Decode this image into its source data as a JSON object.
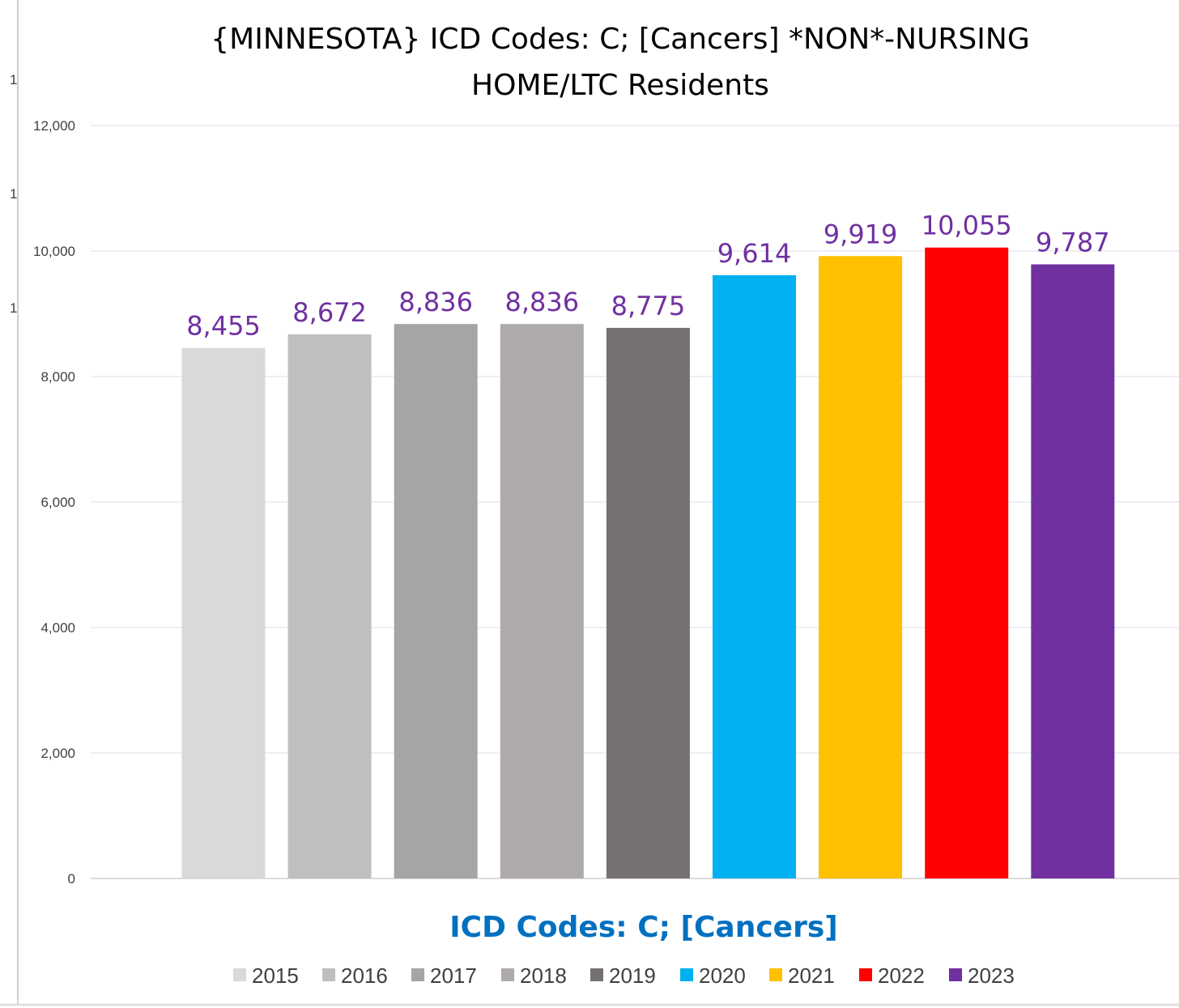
{
  "chart_data": {
    "type": "bar",
    "title": "{MINNESOTA}  ICD Codes: C;  [Cancers] *NON*-NURSING HOME/LTC Residents",
    "title_lines": [
      "{MINNESOTA}  ICD Codes: C;  [Cancers] *NON*-NURSING",
      "HOME/LTC Residents"
    ],
    "xlabel": "ICD Codes: C;  [Cancers]",
    "ylabel": "",
    "ylim": [
      0,
      12000
    ],
    "yticks": [
      0,
      2000,
      4000,
      6000,
      8000,
      10000,
      12000
    ],
    "ytick_labels": [
      "0",
      "2,000",
      "4,000",
      "6,000",
      "8,000",
      "10,000",
      "12,000"
    ],
    "grid": true,
    "legend_position": "bottom",
    "series": [
      {
        "name": "2015",
        "value": 8455,
        "label": "8,455",
        "color": "#D9D9D9"
      },
      {
        "name": "2016",
        "value": 8672,
        "label": "8,672",
        "color": "#BFBFBF"
      },
      {
        "name": "2017",
        "value": 8836,
        "label": "8,836",
        "color": "#A5A5A5"
      },
      {
        "name": "2018",
        "value": 8836,
        "label": "8,836",
        "color": "#AEAAAA"
      },
      {
        "name": "2019",
        "value": 8775,
        "label": "8,775",
        "color": "#767171"
      },
      {
        "name": "2020",
        "value": 9614,
        "label": "9,614",
        "color": "#00B0F0"
      },
      {
        "name": "2021",
        "value": 9919,
        "label": "9,919",
        "color": "#FFC000"
      },
      {
        "name": "2022",
        "value": 10055,
        "label": "10,055",
        "color": "#FF0000"
      },
      {
        "name": "2023",
        "value": 9787,
        "label": "9,787",
        "color": "#7030A0"
      }
    ],
    "stray_axis_labels": [
      "1",
      "1",
      "1"
    ]
  }
}
